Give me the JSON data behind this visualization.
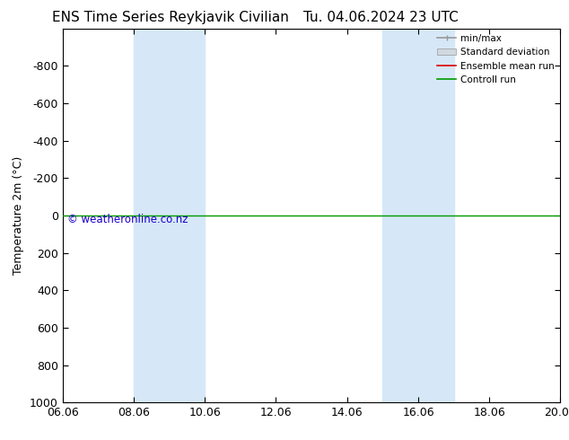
{
  "title": "ENS Time Series Reykjavik Civilian",
  "title2": "Tu. 04.06.2024 23 UTC",
  "ylabel": "Temperature 2m (°C)",
  "ylim": [
    -1000,
    1000
  ],
  "yticks": [
    -800,
    -600,
    -400,
    -200,
    0,
    200,
    400,
    600,
    800,
    1000
  ],
  "xtick_labels": [
    "06.06",
    "08.06",
    "10.06",
    "12.06",
    "14.06",
    "16.06",
    "18.06",
    "20.06"
  ],
  "xtick_positions": [
    0,
    2,
    4,
    6,
    8,
    10,
    12,
    14
  ],
  "shaded_bands": [
    {
      "x_start": 2,
      "x_end": 4
    },
    {
      "x_start": 9,
      "x_end": 11
    }
  ],
  "shaded_color": "#d6e8f7",
  "green_line_y": 0,
  "watermark": "© weatheronline.co.nz",
  "watermark_color": "#1a00cc",
  "background_color": "#ffffff",
  "plot_bg_color": "#ffffff",
  "legend_entries": [
    "min/max",
    "Standard deviation",
    "Ensemble mean run",
    "Controll run"
  ],
  "legend_colors_line": [
    "#999999",
    "#cccccc",
    "#dd0000",
    "#009900"
  ],
  "border_color": "#000000",
  "title_fontsize": 11,
  "axis_fontsize": 9,
  "tick_fontsize": 9
}
